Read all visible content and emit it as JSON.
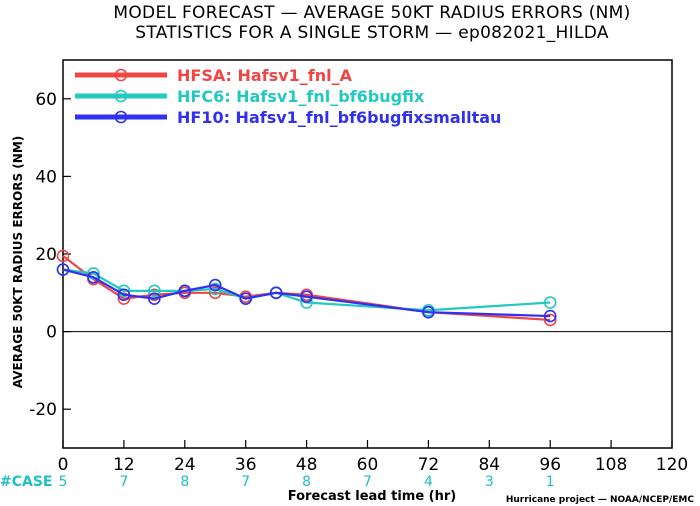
{
  "chart_data": {
    "type": "line",
    "title": "MODEL FORECAST — AVERAGE 50KT RADIUS ERRORS (NM)",
    "subtitle": "STATISTICS FOR A SINGLE STORM — ep082021_HILDA",
    "xlabel": "Forecast lead time (hr)",
    "ylabel": "AVERAGE 50KT RADIUS ERRORS (NM)",
    "xlim": [
      0,
      120
    ],
    "ylim": [
      -30,
      70
    ],
    "xticks": [
      0,
      12,
      24,
      36,
      48,
      60,
      72,
      84,
      96,
      108,
      120
    ],
    "yticks": [
      -20,
      0,
      20,
      40,
      60
    ],
    "zero_line": true,
    "legend_position": "top-left",
    "series": [
      {
        "name": "HFSA: Hafsv1_fnl_A",
        "color": "#f04545",
        "x": [
          0,
          6,
          12,
          18,
          24,
          30,
          36,
          42,
          48,
          72,
          96
        ],
        "y": [
          19.5,
          13.5,
          8.5,
          9.5,
          10,
          10,
          9,
          10,
          9.5,
          5,
          3
        ]
      },
      {
        "name": "HFC6: Hafsv1_fnl_bf6bugfix",
        "color": "#22c9bf",
        "x": [
          0,
          6,
          12,
          18,
          24,
          30,
          36,
          42,
          48,
          72,
          96
        ],
        "y": [
          16,
          15,
          10.5,
          10.5,
          10.5,
          11,
          8.5,
          10,
          7.5,
          5.5,
          7.5
        ]
      },
      {
        "name": "HF10: Hafsv1_fnl_bf6bugfixsmalltau",
        "color": "#3030f0",
        "x": [
          0,
          6,
          12,
          18,
          24,
          30,
          36,
          42,
          48,
          72,
          96
        ],
        "y": [
          16,
          14,
          9.5,
          8.5,
          10.5,
          12,
          8.5,
          10,
          9,
          5,
          4
        ]
      }
    ],
    "case_label": "#CASE",
    "cases": [
      {
        "x": 0,
        "n": "5"
      },
      {
        "x": 12,
        "n": "7"
      },
      {
        "x": 24,
        "n": "8"
      },
      {
        "x": 36,
        "n": "7"
      },
      {
        "x": 48,
        "n": "8"
      },
      {
        "x": 60,
        "n": "7"
      },
      {
        "x": 72,
        "n": "4"
      },
      {
        "x": 84,
        "n": "3"
      },
      {
        "x": 96,
        "n": "1"
      }
    ],
    "case_color": "#1fbfbf",
    "credit": "Hurricane project — NOAA/NCEP/EMC"
  }
}
